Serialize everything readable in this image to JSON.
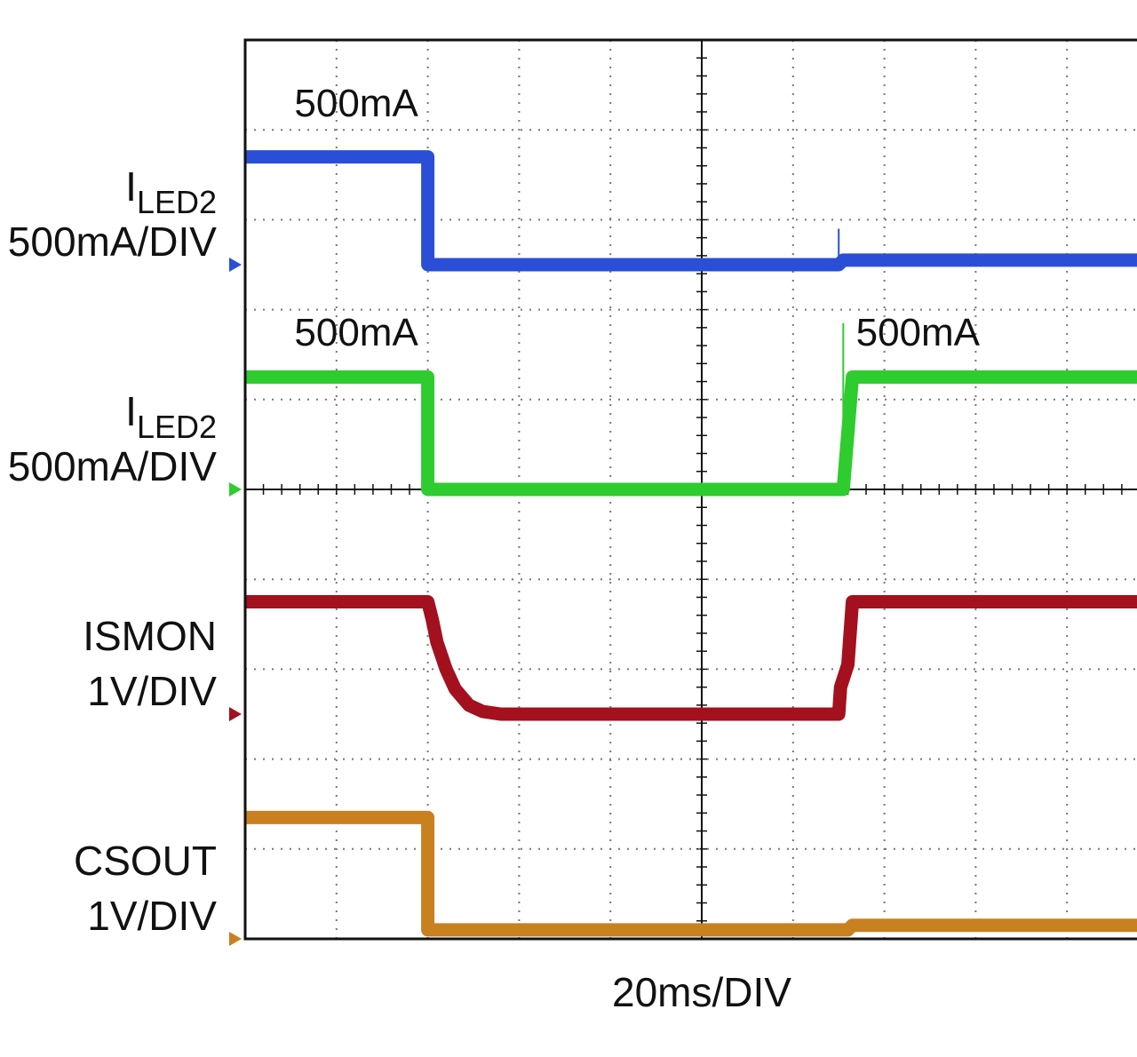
{
  "chart_data": {
    "type": "line",
    "time_axis_label": "20ms/DIV",
    "grid": true,
    "divisions": {
      "horizontal": 10,
      "vertical": 10
    },
    "x_unit": "div",
    "traces": [
      {
        "id": "iled2_top",
        "label_main": "I",
        "label_sub": "LED2",
        "scale": "500mA/DIV",
        "color": "#2a4fd6",
        "ground_div": 7.5,
        "points": [
          [
            0,
            8.7
          ],
          [
            2.0,
            8.7
          ],
          [
            2.0,
            7.5
          ],
          [
            6.5,
            7.5
          ],
          [
            6.55,
            7.55
          ],
          [
            10,
            7.55
          ]
        ],
        "spikes": [
          {
            "x": 6.5,
            "from": 7.5,
            "to": 7.9
          }
        ],
        "annotations": [
          {
            "text": "500mA",
            "x": 0.5,
            "y": 9.15
          }
        ]
      },
      {
        "id": "iled2_bottom",
        "label_main": "I",
        "label_sub": "LED2",
        "scale": "500mA/DIV",
        "color": "#2ecc2e",
        "ground_div": 5.0,
        "points": [
          [
            0,
            6.25
          ],
          [
            2.0,
            6.25
          ],
          [
            2.0,
            5.0
          ],
          [
            6.55,
            5.0
          ],
          [
            6.65,
            6.25
          ],
          [
            10,
            6.25
          ]
        ],
        "spikes": [
          {
            "x": 6.55,
            "from": 5.0,
            "to": 6.85
          }
        ],
        "annotations": [
          {
            "text": "500mA",
            "x": 0.5,
            "y": 6.6
          },
          {
            "text": "500mA",
            "x": 6.65,
            "y": 6.6
          }
        ]
      },
      {
        "id": "ismon",
        "label_main": "ISMON",
        "label_sub": "",
        "scale": "1V/DIV",
        "color": "#a3101e",
        "ground_div": 2.5,
        "points": [
          [
            0,
            3.75
          ],
          [
            2.0,
            3.75
          ],
          [
            2.05,
            3.55
          ],
          [
            2.1,
            3.3
          ],
          [
            2.2,
            3.0
          ],
          [
            2.3,
            2.78
          ],
          [
            2.45,
            2.6
          ],
          [
            2.6,
            2.53
          ],
          [
            2.8,
            2.5
          ],
          [
            6.5,
            2.5
          ],
          [
            6.52,
            2.8
          ],
          [
            6.6,
            3.05
          ],
          [
            6.65,
            3.75
          ],
          [
            10,
            3.75
          ]
        ],
        "spikes": [],
        "annotations": []
      },
      {
        "id": "csout",
        "label_main": "CSOUT",
        "label_sub": "",
        "scale": "1V/DIV",
        "color": "#c9801f",
        "ground_div": 0.0,
        "points": [
          [
            0,
            1.35
          ],
          [
            2.0,
            1.35
          ],
          [
            2.0,
            0.1
          ],
          [
            6.6,
            0.1
          ],
          [
            6.65,
            0.15
          ],
          [
            10,
            0.15
          ]
        ],
        "spikes": [],
        "annotations": []
      }
    ]
  }
}
